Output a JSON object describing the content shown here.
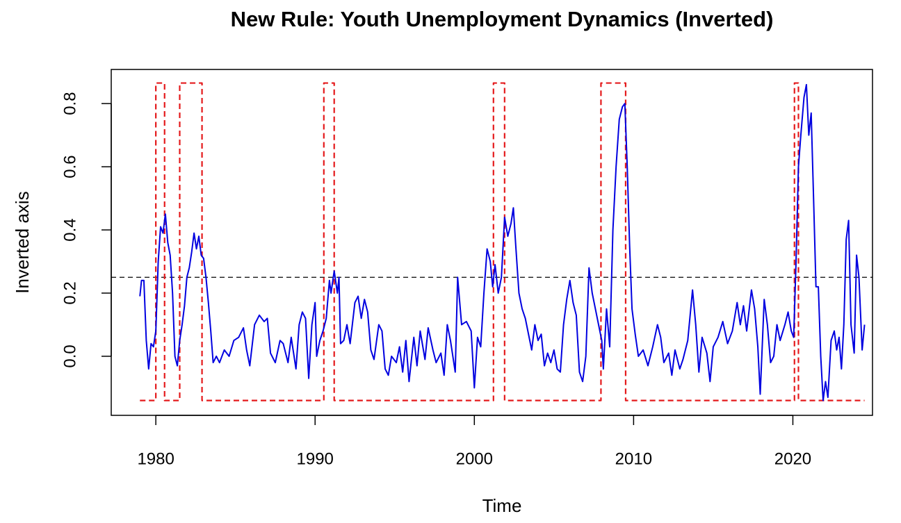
{
  "chart_data": {
    "type": "line",
    "title": "New Rule: Youth Unemployment Dynamics (Inverted)",
    "x_label": "Time",
    "y_label": "Inverted axis",
    "xlim": [
      1977.2,
      2025.0
    ],
    "ylim": [
      -0.187,
      0.908
    ],
    "xticks": [
      1980,
      1990,
      2000,
      2010,
      2020
    ],
    "yticks": [
      {
        "value": 0,
        "label": "0.0"
      },
      {
        "value": 0.2,
        "label": "0.2"
      },
      {
        "value": 0.4,
        "label": "0.4"
      },
      {
        "value": 0.6,
        "label": "0.6"
      },
      {
        "value": 0.8,
        "label": "0.8"
      }
    ],
    "reference_line": {
      "y": 0.25,
      "color": "#000000",
      "linestyle": "dashed"
    },
    "series": [
      {
        "color": "#e41a1c",
        "linestyle": "dashed",
        "x": [
          1979.0,
          1980.0,
          1980.0,
          1980.55,
          1980.55,
          1981.5,
          1981.5,
          1982.9,
          1982.9,
          1990.55,
          1990.55,
          1991.2,
          1991.2,
          2001.2,
          2001.2,
          2001.9,
          2001.9,
          2007.95,
          2007.95,
          2009.5,
          2009.5,
          2020.1,
          2020.1,
          2020.35,
          2020.35,
          2024.5
        ],
        "values": [
          -0.14,
          -0.14,
          0.865,
          0.865,
          -0.14,
          -0.14,
          0.865,
          0.865,
          -0.14,
          -0.14,
          0.865,
          0.865,
          -0.14,
          -0.14,
          0.865,
          0.865,
          -0.14,
          -0.14,
          0.865,
          0.865,
          -0.14,
          -0.14,
          0.865,
          0.865,
          -0.14,
          -0.14
        ]
      },
      {
        "color": "#0000e0",
        "linestyle": "solid",
        "x": [
          1979.0,
          1979.1,
          1979.25,
          1979.4,
          1979.55,
          1979.7,
          1979.85,
          1980.0,
          1980.15,
          1980.3,
          1980.45,
          1980.6,
          1980.75,
          1980.9,
          1981.05,
          1981.2,
          1981.35,
          1981.5,
          1981.65,
          1981.8,
          1981.95,
          1982.1,
          1982.25,
          1982.4,
          1982.55,
          1982.7,
          1982.85,
          1983.0,
          1983.15,
          1983.3,
          1983.45,
          1983.6,
          1983.8,
          1984.0,
          1984.3,
          1984.6,
          1984.9,
          1985.2,
          1985.5,
          1985.7,
          1985.9,
          1986.2,
          1986.5,
          1986.8,
          1987.0,
          1987.2,
          1987.5,
          1987.8,
          1988.0,
          1988.3,
          1988.5,
          1988.8,
          1989.0,
          1989.2,
          1989.4,
          1989.6,
          1989.8,
          1990.0,
          1990.1,
          1990.3,
          1990.5,
          1990.7,
          1990.9,
          1991.0,
          1991.2,
          1991.4,
          1991.5,
          1991.6,
          1991.8,
          1992.0,
          1992.2,
          1992.5,
          1992.7,
          1992.9,
          1993.1,
          1993.3,
          1993.5,
          1993.7,
          1994.0,
          1994.2,
          1994.4,
          1994.6,
          1994.8,
          1995.1,
          1995.3,
          1995.5,
          1995.7,
          1995.9,
          1996.2,
          1996.4,
          1996.6,
          1996.9,
          1997.1,
          1997.4,
          1997.6,
          1997.9,
          1998.1,
          1998.3,
          1998.5,
          1998.8,
          1998.95,
          1999.2,
          1999.5,
          1999.8,
          2000.0,
          2000.2,
          2000.4,
          2000.6,
          2000.8,
          2001.0,
          2001.15,
          2001.3,
          2001.5,
          2001.7,
          2001.9,
          2002.1,
          2002.3,
          2002.45,
          2002.6,
          2002.8,
          2003.0,
          2003.2,
          2003.4,
          2003.6,
          2003.8,
          2004.0,
          2004.2,
          2004.4,
          2004.6,
          2004.8,
          2005.0,
          2005.2,
          2005.4,
          2005.6,
          2005.8,
          2006.0,
          2006.2,
          2006.4,
          2006.6,
          2006.8,
          2007.0,
          2007.2,
          2007.4,
          2007.6,
          2007.8,
          2008.0,
          2008.1,
          2008.3,
          2008.5,
          2008.7,
          2008.9,
          2009.1,
          2009.3,
          2009.45,
          2009.6,
          2009.75,
          2009.9,
          2010.1,
          2010.3,
          2010.6,
          2010.9,
          2011.2,
          2011.5,
          2011.7,
          2011.9,
          2012.2,
          2012.4,
          2012.6,
          2012.9,
          2013.1,
          2013.4,
          2013.7,
          2013.9,
          2014.1,
          2014.3,
          2014.6,
          2014.8,
          2015.0,
          2015.3,
          2015.6,
          2015.9,
          2016.2,
          2016.5,
          2016.7,
          2016.9,
          2017.1,
          2017.4,
          2017.6,
          2017.8,
          2017.95,
          2018.2,
          2018.4,
          2018.6,
          2018.8,
          2019.0,
          2019.2,
          2019.5,
          2019.7,
          2019.9,
          2020.05,
          2020.2,
          2020.35,
          2020.5,
          2020.7,
          2020.85,
          2021.0,
          2021.15,
          2021.3,
          2021.45,
          2021.6,
          2021.75,
          2021.9,
          2022.05,
          2022.2,
          2022.4,
          2022.6,
          2022.75,
          2022.9,
          2023.05,
          2023.2,
          2023.35,
          2023.5,
          2023.65,
          2023.85,
          2024.0,
          2024.15,
          2024.35,
          2024.5
        ],
        "values": [
          0.19,
          0.24,
          0.24,
          0.05,
          -0.04,
          0.04,
          0.03,
          0.08,
          0.3,
          0.41,
          0.39,
          0.45,
          0.36,
          0.32,
          0.2,
          0.0,
          -0.03,
          0.05,
          0.1,
          0.16,
          0.25,
          0.28,
          0.33,
          0.39,
          0.34,
          0.38,
          0.32,
          0.31,
          0.25,
          0.17,
          0.08,
          -0.02,
          0.0,
          -0.02,
          0.02,
          0.0,
          0.05,
          0.06,
          0.09,
          0.02,
          -0.03,
          0.1,
          0.13,
          0.11,
          0.12,
          0.01,
          -0.02,
          0.05,
          0.04,
          -0.02,
          0.06,
          -0.04,
          0.1,
          0.14,
          0.12,
          -0.07,
          0.1,
          0.17,
          0.0,
          0.05,
          0.08,
          0.12,
          0.24,
          0.2,
          0.27,
          0.2,
          0.25,
          0.04,
          0.05,
          0.1,
          0.04,
          0.17,
          0.19,
          0.12,
          0.18,
          0.14,
          0.02,
          -0.01,
          0.1,
          0.08,
          -0.04,
          -0.06,
          0.0,
          -0.02,
          0.03,
          -0.05,
          0.05,
          -0.08,
          0.06,
          -0.03,
          0.08,
          -0.01,
          0.09,
          0.02,
          -0.02,
          0.01,
          -0.06,
          0.1,
          0.05,
          -0.05,
          0.25,
          0.1,
          0.11,
          0.08,
          -0.1,
          0.06,
          0.03,
          0.2,
          0.34,
          0.3,
          0.22,
          0.29,
          0.2,
          0.25,
          0.44,
          0.38,
          0.42,
          0.47,
          0.35,
          0.2,
          0.15,
          0.12,
          0.07,
          0.02,
          0.1,
          0.05,
          0.07,
          -0.03,
          0.01,
          -0.02,
          0.02,
          -0.04,
          -0.05,
          0.1,
          0.18,
          0.24,
          0.17,
          0.13,
          -0.05,
          -0.08,
          0.0,
          0.28,
          0.2,
          0.15,
          0.1,
          0.05,
          -0.04,
          0.15,
          0.03,
          0.4,
          0.6,
          0.75,
          0.79,
          0.8,
          0.6,
          0.35,
          0.15,
          0.07,
          0.0,
          0.02,
          -0.03,
          0.03,
          0.1,
          0.06,
          -0.02,
          0.01,
          -0.06,
          0.02,
          -0.04,
          -0.01,
          0.05,
          0.21,
          0.1,
          -0.05,
          0.06,
          0.01,
          -0.08,
          0.03,
          0.06,
          0.11,
          0.04,
          0.08,
          0.17,
          0.1,
          0.16,
          0.08,
          0.21,
          0.15,
          0.03,
          -0.12,
          0.18,
          0.1,
          -0.02,
          0.0,
          0.1,
          0.05,
          0.1,
          0.14,
          0.08,
          0.06,
          0.3,
          0.6,
          0.7,
          0.82,
          0.86,
          0.7,
          0.77,
          0.5,
          0.22,
          0.22,
          0.0,
          -0.14,
          -0.08,
          -0.13,
          0.05,
          0.08,
          0.02,
          0.06,
          -0.04,
          0.1,
          0.37,
          0.43,
          0.1,
          0.01,
          0.32,
          0.25,
          0.02,
          0.1
        ]
      }
    ]
  }
}
